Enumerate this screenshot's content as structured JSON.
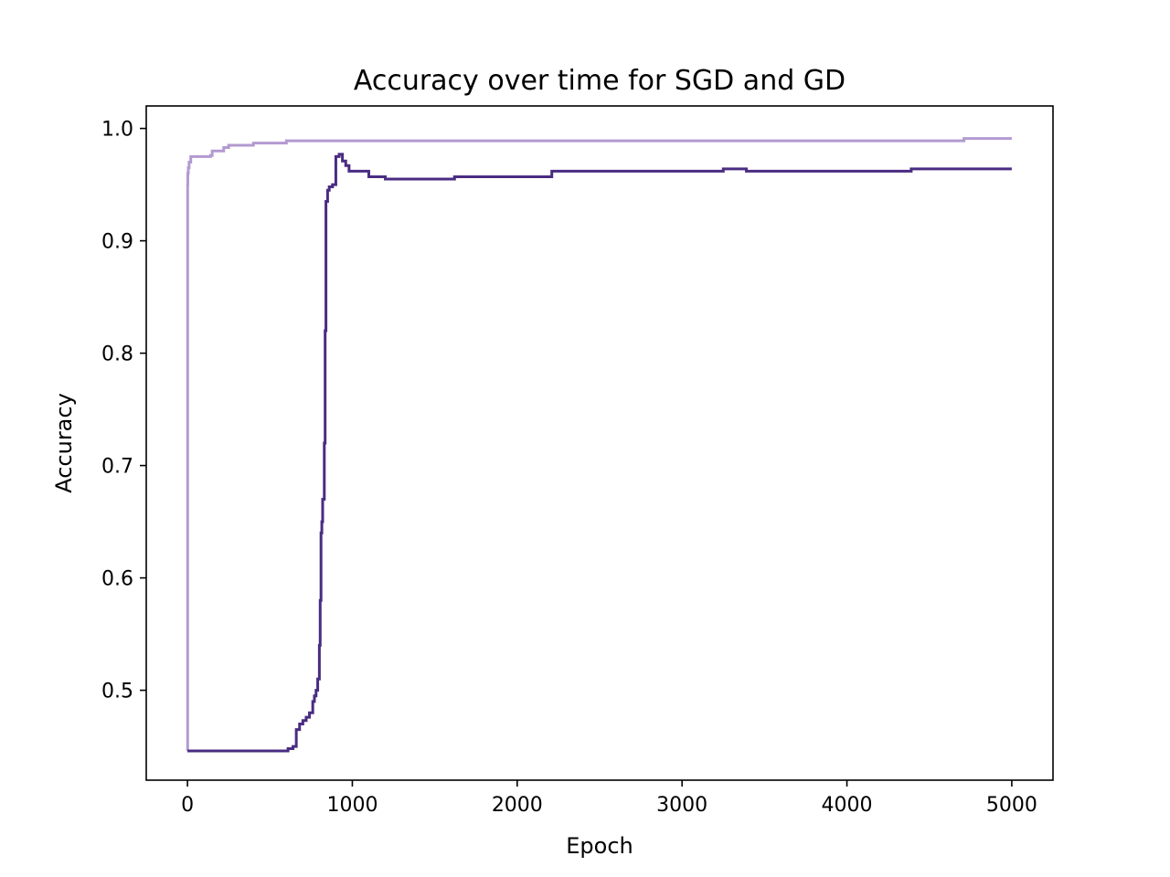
{
  "chart_data": {
    "type": "line",
    "title": "Accuracy over time for SGD and GD",
    "xlabel": "Epoch",
    "ylabel": "Accuracy",
    "xlim": [
      -250,
      5250
    ],
    "ylim": [
      0.42,
      1.02
    ],
    "xticks": [
      0,
      1000,
      2000,
      3000,
      4000,
      5000
    ],
    "xtick_labels": [
      "0",
      "1000",
      "2000",
      "3000",
      "4000",
      "5000"
    ],
    "yticks": [
      0.5,
      0.6,
      0.7,
      0.8,
      0.9,
      1.0
    ],
    "ytick_labels": [
      "0.5",
      "0.6",
      "0.7",
      "0.8",
      "0.9",
      "1.0"
    ],
    "grid": false,
    "series": [
      {
        "color": "#b39ad1",
        "x": [
          0,
          1,
          2,
          5,
          10,
          20,
          40,
          60,
          80,
          100,
          140,
          150,
          200,
          220,
          250,
          300,
          400,
          500,
          600,
          700,
          800,
          1000,
          2000,
          3000,
          4000,
          4700,
          4710,
          5000
        ],
        "y": [
          0.446,
          0.95,
          0.96,
          0.965,
          0.97,
          0.975,
          0.975,
          0.975,
          0.975,
          0.975,
          0.976,
          0.98,
          0.98,
          0.983,
          0.985,
          0.985,
          0.987,
          0.987,
          0.989,
          0.989,
          0.989,
          0.989,
          0.989,
          0.989,
          0.989,
          0.989,
          0.991,
          0.991
        ]
      },
      {
        "color": "#4a2c82",
        "x": [
          0,
          600,
          610,
          640,
          660,
          680,
          700,
          720,
          740,
          760,
          770,
          780,
          790,
          800,
          805,
          810,
          815,
          820,
          830,
          835,
          840,
          850,
          860,
          880,
          900,
          920,
          940,
          960,
          980,
          1000,
          1050,
          1080,
          1100,
          1150,
          1200,
          1400,
          1600,
          1620,
          2000,
          2200,
          2210,
          3000,
          3240,
          3250,
          3380,
          3390,
          4000,
          4380,
          4390,
          5000
        ],
        "y": [
          0.446,
          0.446,
          0.448,
          0.45,
          0.465,
          0.47,
          0.473,
          0.476,
          0.48,
          0.49,
          0.495,
          0.5,
          0.51,
          0.54,
          0.58,
          0.64,
          0.65,
          0.67,
          0.72,
          0.82,
          0.935,
          0.945,
          0.948,
          0.95,
          0.975,
          0.977,
          0.971,
          0.967,
          0.962,
          0.962,
          0.962,
          0.962,
          0.957,
          0.957,
          0.955,
          0.955,
          0.955,
          0.957,
          0.957,
          0.957,
          0.962,
          0.962,
          0.962,
          0.964,
          0.964,
          0.962,
          0.962,
          0.962,
          0.964,
          0.964
        ]
      }
    ]
  }
}
